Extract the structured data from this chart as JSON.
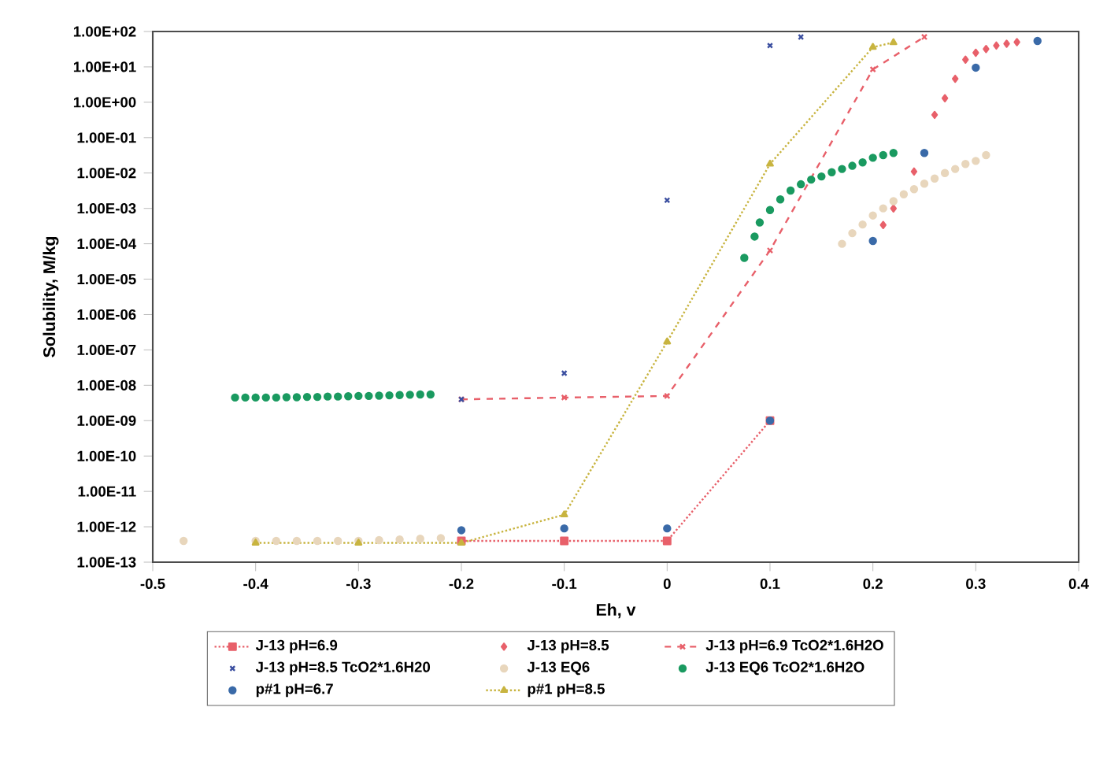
{
  "chart_data": {
    "type": "scatter",
    "xlabel": "Eh, v",
    "ylabel": "Solubility, M/kg",
    "log": "y",
    "grid": false,
    "legend": "bottom",
    "xlim": [
      -0.5,
      0.4
    ],
    "xticks": [
      -0.5,
      -0.4,
      -0.3,
      -0.2,
      -0.1,
      0,
      0.1,
      0.2,
      0.3,
      0.4
    ],
    "ylim": [
      1e-13,
      100
    ],
    "yticks": [
      {
        "value": 1e-13,
        "label": "1.00E-13"
      },
      {
        "value": 1e-12,
        "label": "1.00E-12"
      },
      {
        "value": 1e-11,
        "label": "1.00E-11"
      },
      {
        "value": 1e-10,
        "label": "1.00E-10"
      },
      {
        "value": 1e-09,
        "label": "1.00E-09"
      },
      {
        "value": 1e-08,
        "label": "1.00E-08"
      },
      {
        "value": 1e-07,
        "label": "1.00E-07"
      },
      {
        "value": 1e-06,
        "label": "1.00E-06"
      },
      {
        "value": 1e-05,
        "label": "1.00E-05"
      },
      {
        "value": 0.0001,
        "label": "1.00E-04"
      },
      {
        "value": 0.001,
        "label": "1.00E-03"
      },
      {
        "value": 0.01,
        "label": "1.00E-02"
      },
      {
        "value": 0.1,
        "label": "1.00E-01"
      },
      {
        "value": 1,
        "label": "1.00E+00"
      },
      {
        "value": 10,
        "label": "1.00E+01"
      },
      {
        "value": 100,
        "label": "1.00E+02"
      }
    ],
    "series": [
      {
        "name": "J-13 pH=6.9",
        "type": "line",
        "marker": "square",
        "line_style": "dotted",
        "color": "#e8606a",
        "x": [
          -0.2,
          -0.1,
          0,
          0.1
        ],
        "values": [
          4e-13,
          4e-13,
          4e-13,
          1e-09
        ]
      },
      {
        "name": "J-13 pH=8.5",
        "marker": "diamond",
        "color": "#e8606a",
        "x": [
          0.21,
          0.22,
          0.24,
          0.25,
          0.26,
          0.27,
          0.28,
          0.29,
          0.3,
          0.31,
          0.32,
          0.33,
          0.34
        ],
        "values": [
          0.00034,
          0.001,
          0.011,
          null,
          0.44,
          1.3,
          4.6,
          16,
          25,
          32,
          40,
          45,
          50
        ]
      },
      {
        "name": "J-13 pH=6.9 TcO2*1.6H2O",
        "type": "line",
        "marker": "cross",
        "line_style": "dashed",
        "color": "#e8606a",
        "x": [
          -0.2,
          -0.1,
          0,
          0.1,
          0.2,
          0.25
        ],
        "values": [
          4e-09,
          4.5e-09,
          5e-09,
          6.5e-05,
          8.5,
          70
        ]
      },
      {
        "name": "J-13 pH=8.5 TcO2*1.6H20",
        "marker": "cross",
        "color": "#3b4fa0",
        "x": [
          -0.2,
          -0.1,
          0,
          0.1,
          0.13
        ],
        "values": [
          4e-09,
          2.2e-08,
          0.0017,
          40,
          70
        ]
      },
      {
        "name": "J-13 EQ6",
        "marker": "circle",
        "color": "#e8d6bc",
        "x": [
          -0.47,
          -0.4,
          -0.38,
          -0.36,
          -0.34,
          -0.32,
          -0.3,
          -0.28,
          -0.26,
          -0.24,
          -0.22,
          0.17,
          0.18,
          0.19,
          0.2,
          0.21,
          0.22,
          0.23,
          0.24,
          0.25,
          0.26,
          0.27,
          0.28,
          0.29,
          0.3,
          0.31
        ],
        "values": [
          4e-13,
          4e-13,
          4e-13,
          4e-13,
          4e-13,
          4e-13,
          4e-13,
          4.2e-13,
          4.4e-13,
          4.6e-13,
          4.8e-13,
          0.0001,
          0.0002,
          0.00035,
          0.00063,
          0.001,
          0.0016,
          0.0025,
          0.0035,
          0.005,
          0.007,
          0.01,
          0.013,
          0.018,
          0.022,
          0.032
        ]
      },
      {
        "name": "J-13 EQ6 TcO2*1.6H2O",
        "marker": "circle",
        "color": "#1a9a60",
        "x": [
          -0.42,
          -0.41,
          -0.4,
          -0.39,
          -0.38,
          -0.37,
          -0.36,
          -0.35,
          -0.34,
          -0.33,
          -0.32,
          -0.31,
          -0.3,
          -0.29,
          -0.28,
          -0.27,
          -0.26,
          -0.25,
          -0.24,
          -0.23,
          0.075,
          0.085,
          0.09,
          0.1,
          0.11,
          0.12,
          0.13,
          0.14,
          0.15,
          0.16,
          0.17,
          0.18,
          0.19,
          0.2,
          0.21,
          0.22
        ],
        "values": [
          4.5e-09,
          4.5e-09,
          4.5e-09,
          4.5e-09,
          4.5e-09,
          4.6e-09,
          4.6e-09,
          4.7e-09,
          4.7e-09,
          4.8e-09,
          4.8e-09,
          4.9e-09,
          5e-09,
          5e-09,
          5.1e-09,
          5.2e-09,
          5.3e-09,
          5.4e-09,
          5.5e-09,
          5.5e-09,
          4e-05,
          0.00016,
          0.0004,
          0.0009,
          0.0018,
          0.0032,
          0.0048,
          0.0065,
          0.008,
          0.0105,
          0.013,
          0.016,
          0.02,
          0.027,
          0.032,
          0.037
        ]
      },
      {
        "name": "p#1 pH=6.7",
        "marker": "circle",
        "color": "#3a6aa8",
        "x": [
          -0.2,
          -0.1,
          0,
          0.1,
          0.2,
          0.25,
          0.3,
          0.36
        ],
        "values": [
          8e-13,
          9e-13,
          9e-13,
          1e-09,
          0.00012,
          0.037,
          9.5,
          54
        ]
      },
      {
        "name": "p#1 pH=8.5",
        "type": "line",
        "marker": "triangle",
        "line_style": "dotted",
        "color": "#c8b440",
        "x": [
          -0.4,
          -0.3,
          -0.2,
          -0.1,
          0,
          0.1,
          0.2,
          0.22
        ],
        "values": [
          3.5e-13,
          3.5e-13,
          3.5e-13,
          2.2e-12,
          1.7e-07,
          0.018,
          36,
          49
        ]
      }
    ]
  }
}
